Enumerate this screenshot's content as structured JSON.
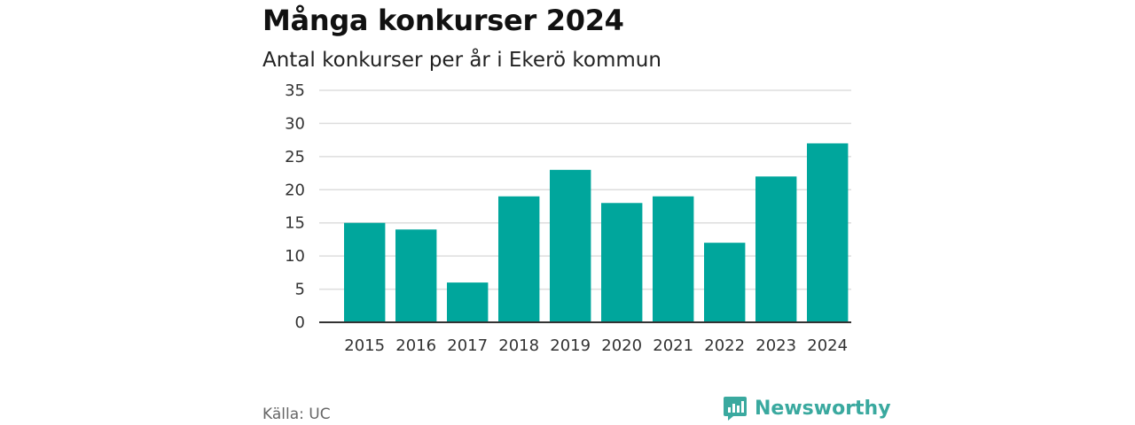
{
  "title": "Många konkurser 2024",
  "subtitle": "Antal konkurser per år i Ekerö kommun",
  "source": "Källa: UC",
  "brand": {
    "name": "Newsworthy",
    "icon": "newsworthy-logo-icon",
    "color": "#3aa99f"
  },
  "colors": {
    "bar": "#00a69c",
    "grid": "#dddddd",
    "axis": "#333333"
  },
  "chart_data": {
    "type": "bar",
    "categories": [
      "2015",
      "2016",
      "2017",
      "2018",
      "2019",
      "2020",
      "2021",
      "2022",
      "2023",
      "2024"
    ],
    "values": [
      15,
      14,
      6,
      19,
      23,
      18,
      19,
      12,
      22,
      27
    ],
    "yticks": [
      0,
      5,
      10,
      15,
      20,
      25,
      30,
      35
    ],
    "ylim": [
      0,
      35
    ],
    "grid": true,
    "xlabel": "",
    "ylabel": ""
  }
}
